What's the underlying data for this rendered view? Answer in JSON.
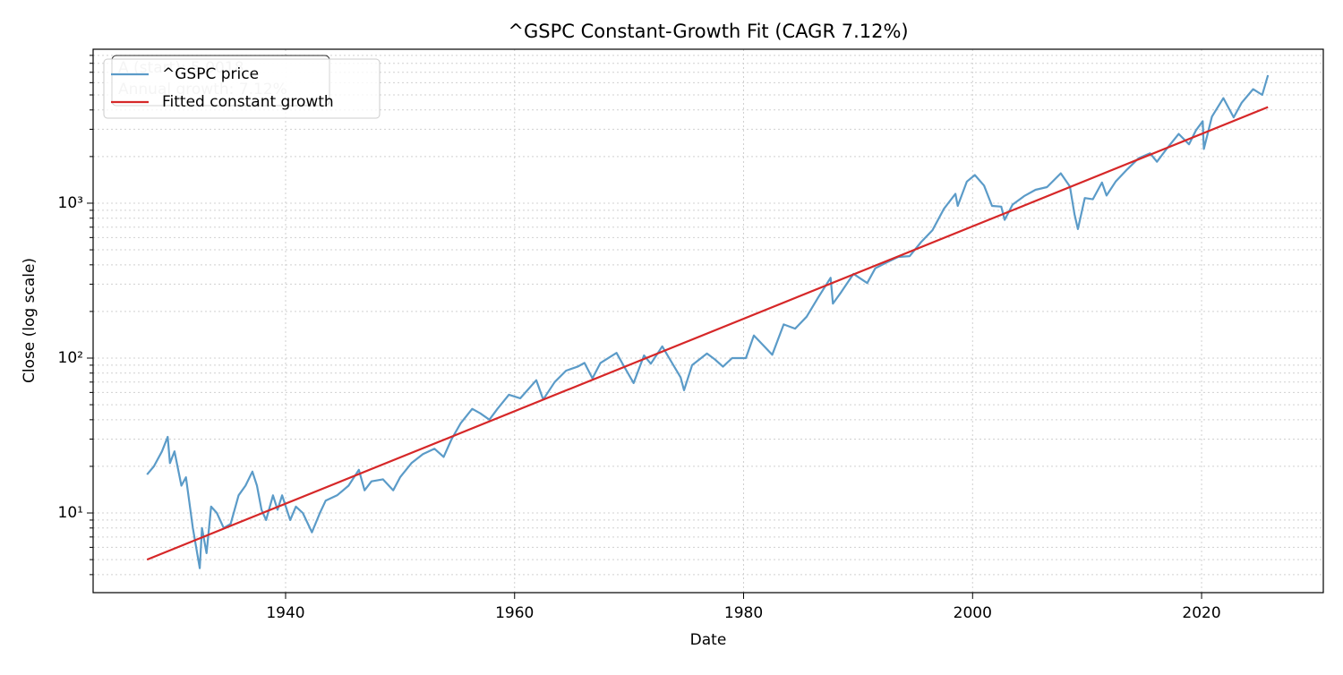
{
  "chart_data": {
    "type": "line",
    "title": "^GSPC Constant-Growth Fit (CAGR 7.12%)",
    "xlabel": "Date",
    "ylabel": "Close (log scale)",
    "annotation": [
      "A (start): 5.0018",
      "Annual growth: 7.12%"
    ],
    "xlim": [
      1923.19,
      2030.63
    ],
    "xticks": [
      1940,
      1960,
      1980,
      2000,
      2020
    ],
    "ylim": [
      3.06,
      9860
    ],
    "yscale": "log",
    "yticks": [
      {
        "value": 10,
        "label": "10¹"
      },
      {
        "value": 100,
        "label": "10²"
      },
      {
        "value": 1000,
        "label": "10³"
      }
    ],
    "yminorticks": [
      4,
      5,
      6,
      7,
      8,
      9,
      20,
      30,
      40,
      50,
      60,
      70,
      80,
      90,
      200,
      300,
      400,
      500,
      600,
      700,
      800,
      900,
      2000,
      3000,
      4000,
      5000,
      6000,
      7000,
      8000,
      9000
    ],
    "grid": true,
    "legend": "upper left",
    "series": [
      {
        "name": "^GSPC price",
        "color": "#5b9bc8",
        "x": [
          1927.9,
          1928.5,
          1929.2,
          1929.7,
          1929.9,
          1930.3,
          1930.9,
          1931.3,
          1931.9,
          1932.5,
          1932.7,
          1933.1,
          1933.5,
          1934.0,
          1934.6,
          1935.2,
          1935.9,
          1936.5,
          1937.1,
          1937.5,
          1937.9,
          1938.3,
          1938.9,
          1939.3,
          1939.7,
          1940.4,
          1940.9,
          1941.5,
          1942.3,
          1943.0,
          1943.5,
          1944.5,
          1945.5,
          1946.4,
          1946.9,
          1947.5,
          1948.5,
          1949.4,
          1950.0,
          1951.0,
          1952.0,
          1953.0,
          1953.8,
          1954.5,
          1955.3,
          1956.3,
          1957.0,
          1957.8,
          1958.5,
          1959.5,
          1960.5,
          1961.9,
          1962.5,
          1963.5,
          1964.5,
          1965.5,
          1966.1,
          1966.8,
          1967.5,
          1968.9,
          1969.5,
          1970.4,
          1971.3,
          1971.9,
          1972.9,
          1973.5,
          1974.5,
          1974.8,
          1975.5,
          1976.8,
          1977.5,
          1978.2,
          1979.0,
          1980.2,
          1980.9,
          1982.5,
          1983.5,
          1984.5,
          1985.5,
          1986.5,
          1987.6,
          1987.8,
          1988.5,
          1989.6,
          1990.8,
          1991.5,
          1992.5,
          1993.5,
          1994.5,
          1995.5,
          1996.5,
          1997.5,
          1998.5,
          1998.7,
          1999.5,
          2000.2,
          2001.0,
          2001.7,
          2002.5,
          2002.8,
          2003.5,
          2004.5,
          2005.5,
          2006.5,
          2007.7,
          2008.5,
          2008.9,
          2009.2,
          2009.8,
          2010.5,
          2011.3,
          2011.7,
          2012.5,
          2013.5,
          2014.5,
          2015.5,
          2016.1,
          2017.0,
          2018.0,
          2018.9,
          2019.5,
          2020.1,
          2020.2,
          2020.9,
          2021.9,
          2022.8,
          2023.5,
          2024.5,
          2025.3,
          2025.8
        ],
        "values": [
          17.7,
          20,
          25,
          31,
          21,
          25,
          15,
          17,
          8,
          4.4,
          8,
          5.5,
          11,
          10,
          8,
          8.5,
          13,
          15,
          18.5,
          15,
          10.5,
          9,
          13,
          10.5,
          13,
          9,
          11,
          10,
          7.5,
          10,
          12,
          13,
          15,
          19,
          14,
          16,
          16.5,
          14,
          17,
          21,
          24,
          26,
          23,
          30,
          38,
          47,
          44,
          40,
          47,
          58,
          55,
          72,
          54,
          70,
          83,
          88,
          93,
          74,
          93,
          108,
          90,
          69,
          104,
          92,
          119,
          100,
          75,
          62,
          90,
          107,
          98,
          88,
          100,
          100,
          140,
          105,
          165,
          155,
          185,
          245,
          330,
          225,
          265,
          350,
          305,
          380,
          415,
          450,
          455,
          560,
          670,
          920,
          1150,
          960,
          1380,
          1520,
          1300,
          960,
          950,
          780,
          980,
          1110,
          1220,
          1270,
          1560,
          1280,
          850,
          680,
          1080,
          1060,
          1360,
          1120,
          1380,
          1650,
          1950,
          2100,
          1850,
          2270,
          2800,
          2400,
          2950,
          3380,
          2240,
          3620,
          4770,
          3580,
          4450,
          5450,
          5000,
          6700
        ]
      },
      {
        "name": "Fitted constant growth",
        "color": "#d62728",
        "x": [
          1927.9,
          2025.8
        ],
        "values": [
          5.0018,
          4171
        ]
      }
    ]
  }
}
